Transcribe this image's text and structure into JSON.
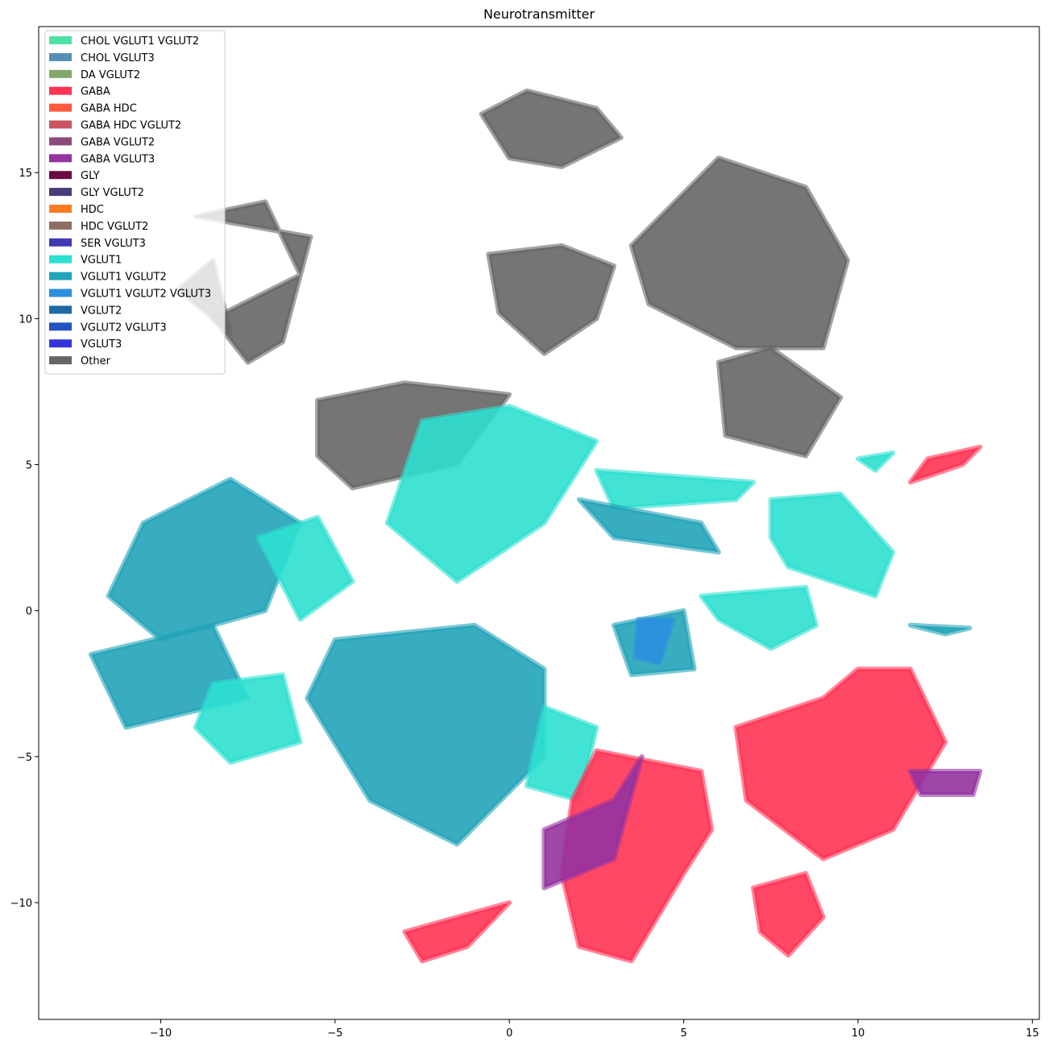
{
  "chart_data": {
    "type": "scatter",
    "title": "Neurotransmitter",
    "xlabel": "",
    "ylabel": "",
    "xlim": [
      -13.5,
      15.2
    ],
    "ylim": [
      -14.0,
      20.0
    ],
    "xticks": [
      -10,
      -5,
      0,
      5,
      10,
      15
    ],
    "xtick_labels": [
      "−10",
      "−5",
      "0",
      "5",
      "10",
      "15"
    ],
    "yticks": [
      -10,
      -5,
      0,
      5,
      10,
      15
    ],
    "ytick_labels": [
      "−10",
      "−5",
      "0",
      "5",
      "10",
      "15"
    ],
    "grid": false,
    "legend_position": "top-left",
    "legend": [
      {
        "name": "CHOL VGLUT1 VGLUT2",
        "color": "#4fe0a6"
      },
      {
        "name": "CHOL VGLUT3",
        "color": "#568fb3"
      },
      {
        "name": "DA VGLUT2",
        "color": "#84a86a"
      },
      {
        "name": "GABA",
        "color": "#ff3355"
      },
      {
        "name": "GABA HDC",
        "color": "#ff5a40"
      },
      {
        "name": "GABA HDC VGLUT2",
        "color": "#c85660"
      },
      {
        "name": "GABA VGLUT2",
        "color": "#8a4a7a"
      },
      {
        "name": "GABA VGLUT3",
        "color": "#9532a0"
      },
      {
        "name": "GLY",
        "color": "#6a0a40"
      },
      {
        "name": "GLY VGLUT2",
        "color": "#4a3a78"
      },
      {
        "name": "HDC",
        "color": "#ff7a20"
      },
      {
        "name": "HDC VGLUT2",
        "color": "#8e6e62"
      },
      {
        "name": "SER VGLUT3",
        "color": "#3f3ab6"
      },
      {
        "name": "VGLUT1",
        "color": "#2de0d0"
      },
      {
        "name": "VGLUT1 VGLUT2",
        "color": "#23a4b9"
      },
      {
        "name": "VGLUT1 VGLUT2 VGLUT3",
        "color": "#2b8fdf"
      },
      {
        "name": "VGLUT2",
        "color": "#1e6aa6"
      },
      {
        "name": "VGLUT2 VGLUT3",
        "color": "#2352c2"
      },
      {
        "name": "VGLUT3",
        "color": "#3236d8"
      },
      {
        "name": "Other",
        "color": "#666666"
      }
    ],
    "clusters": [
      {
        "series": "Other",
        "points": [
          [
            -9,
            13.5
          ],
          [
            -7,
            14
          ],
          [
            -6,
            11.5
          ],
          [
            -8.5,
            10
          ],
          [
            -7.5,
            8.5
          ],
          [
            -6.5,
            9.2
          ],
          [
            -5.7,
            12.8
          ]
        ]
      },
      {
        "series": "Other",
        "points": [
          [
            -0.8,
            17
          ],
          [
            0.5,
            17.8
          ],
          [
            2.5,
            17.2
          ],
          [
            3.2,
            16.2
          ],
          [
            1.5,
            15.2
          ],
          [
            0,
            15.5
          ]
        ]
      },
      {
        "series": "Other",
        "points": [
          [
            -0.6,
            12.2
          ],
          [
            1.5,
            12.5
          ],
          [
            3,
            11.8
          ],
          [
            2.5,
            10
          ],
          [
            1,
            8.8
          ],
          [
            -0.3,
            10.2
          ]
        ]
      },
      {
        "series": "Other",
        "points": [
          [
            3.5,
            12.5
          ],
          [
            6,
            15.5
          ],
          [
            8.5,
            14.5
          ],
          [
            9.7,
            12
          ],
          [
            9,
            9
          ],
          [
            6.5,
            9
          ],
          [
            4,
            10.5
          ]
        ]
      },
      {
        "series": "Other",
        "points": [
          [
            6,
            8.5
          ],
          [
            7.5,
            9
          ],
          [
            9.5,
            7.3
          ],
          [
            8.5,
            5.3
          ],
          [
            6.2,
            6
          ]
        ]
      },
      {
        "series": "Other",
        "points": [
          [
            -5.5,
            7.2
          ],
          [
            -3,
            7.8
          ],
          [
            0,
            7.4
          ],
          [
            -1.5,
            5
          ],
          [
            -4.5,
            4.2
          ],
          [
            -5.5,
            5.3
          ]
        ]
      },
      {
        "series": "VGLUT1",
        "points": [
          [
            -2.5,
            6.5
          ],
          [
            0,
            7
          ],
          [
            2.5,
            5.8
          ],
          [
            1,
            3
          ],
          [
            -1.5,
            1
          ],
          [
            -3.5,
            3
          ]
        ]
      },
      {
        "series": "VGLUT1 VGLUT2",
        "points": [
          [
            -10.5,
            3
          ],
          [
            -8,
            4.5
          ],
          [
            -6,
            3
          ],
          [
            -7,
            0
          ],
          [
            -10,
            -1
          ],
          [
            -11.5,
            0.5
          ]
        ]
      },
      {
        "series": "VGLUT1",
        "points": [
          [
            -7.2,
            2.5
          ],
          [
            -5.5,
            3.2
          ],
          [
            -4.5,
            1
          ],
          [
            -6,
            -0.3
          ]
        ]
      },
      {
        "series": "VGLUT1 VGLUT2",
        "points": [
          [
            -12,
            -1.5
          ],
          [
            -8.5,
            -0.5
          ],
          [
            -7.5,
            -3
          ],
          [
            -11,
            -4
          ]
        ]
      },
      {
        "series": "VGLUT1",
        "points": [
          [
            -8.5,
            -2.5
          ],
          [
            -6.5,
            -2.2
          ],
          [
            -6,
            -4.5
          ],
          [
            -8,
            -5.2
          ],
          [
            -9,
            -4
          ]
        ]
      },
      {
        "series": "VGLUT1 VGLUT2",
        "points": [
          [
            -5,
            -1
          ],
          [
            -1,
            -0.5
          ],
          [
            1,
            -2
          ],
          [
            1,
            -5
          ],
          [
            -1.5,
            -8
          ],
          [
            -4,
            -6.5
          ],
          [
            -5.8,
            -3
          ]
        ]
      },
      {
        "series": "VGLUT1",
        "points": [
          [
            1,
            -3.3
          ],
          [
            2.5,
            -4
          ],
          [
            2,
            -6.5
          ],
          [
            0.5,
            -6
          ]
        ]
      },
      {
        "series": "VGLUT1 VGLUT2",
        "points": [
          [
            3,
            -0.5
          ],
          [
            5,
            0
          ],
          [
            5.3,
            -2
          ],
          [
            3.5,
            -2.2
          ]
        ]
      },
      {
        "series": "VGLUT1 VGLUT2 VGLUT3",
        "points": [
          [
            3.7,
            -0.3
          ],
          [
            4.7,
            -0.3
          ],
          [
            4.3,
            -1.8
          ],
          [
            3.6,
            -1.6
          ]
        ]
      },
      {
        "series": "VGLUT1",
        "points": [
          [
            2.5,
            4.8
          ],
          [
            7,
            4.4
          ],
          [
            6.5,
            3.8
          ],
          [
            3,
            3.5
          ]
        ]
      },
      {
        "series": "VGLUT1 VGLUT2",
        "points": [
          [
            2,
            3.8
          ],
          [
            5.5,
            3
          ],
          [
            6,
            2
          ],
          [
            3,
            2.5
          ]
        ]
      },
      {
        "series": "VGLUT1",
        "points": [
          [
            7.5,
            3.8
          ],
          [
            9.5,
            4
          ],
          [
            11,
            2
          ],
          [
            10.5,
            0.5
          ],
          [
            8,
            1.5
          ],
          [
            7.5,
            2.5
          ]
        ]
      },
      {
        "series": "VGLUT1",
        "points": [
          [
            5.5,
            0.5
          ],
          [
            8.5,
            0.8
          ],
          [
            8.8,
            -0.5
          ],
          [
            7.5,
            -1.3
          ],
          [
            6,
            -0.3
          ]
        ]
      },
      {
        "series": "VGLUT1",
        "points": [
          [
            10,
            5.2
          ],
          [
            11,
            5.4
          ],
          [
            10.5,
            4.8
          ]
        ]
      },
      {
        "series": "GABA",
        "points": [
          [
            12,
            5.2
          ],
          [
            13.5,
            5.6
          ],
          [
            13,
            5
          ],
          [
            11.5,
            4.4
          ]
        ]
      },
      {
        "series": "GABA",
        "points": [
          [
            2.5,
            -4.8
          ],
          [
            5.5,
            -5.5
          ],
          [
            5.8,
            -7.5
          ],
          [
            5,
            -9
          ],
          [
            3.5,
            -12
          ],
          [
            2,
            -11.5
          ],
          [
            1.5,
            -9
          ],
          [
            1.8,
            -6.5
          ]
        ]
      },
      {
        "series": "GABA VGLUT3",
        "points": [
          [
            1,
            -7.5
          ],
          [
            3,
            -6.5
          ],
          [
            3.8,
            -5
          ],
          [
            3,
            -8.5
          ],
          [
            1,
            -9.5
          ]
        ]
      },
      {
        "series": "GABA",
        "points": [
          [
            -3,
            -11
          ],
          [
            -1.5,
            -10.5
          ],
          [
            0,
            -10
          ],
          [
            -1.2,
            -11.5
          ],
          [
            -2.5,
            -12
          ]
        ]
      },
      {
        "series": "GABA",
        "points": [
          [
            6.5,
            -4
          ],
          [
            9,
            -3
          ],
          [
            10,
            -2
          ],
          [
            11.5,
            -2
          ],
          [
            12.5,
            -4.5
          ],
          [
            11,
            -7.5
          ],
          [
            9,
            -8.5
          ],
          [
            6.8,
            -6.5
          ]
        ]
      },
      {
        "series": "GABA VGLUT3",
        "points": [
          [
            11.5,
            -5.5
          ],
          [
            13.5,
            -5.5
          ],
          [
            13.3,
            -6.3
          ],
          [
            11.8,
            -6.3
          ]
        ]
      },
      {
        "series": "GABA",
        "points": [
          [
            7,
            -9.5
          ],
          [
            8.5,
            -9
          ],
          [
            9,
            -10.5
          ],
          [
            8,
            -11.8
          ],
          [
            7.2,
            -11
          ]
        ]
      },
      {
        "series": "VGLUT1 VGLUT2",
        "points": [
          [
            11.5,
            -0.5
          ],
          [
            13.2,
            -0.6
          ],
          [
            12.5,
            -0.8
          ]
        ]
      },
      {
        "series": "Other",
        "points": [
          [
            -8.5,
            12
          ],
          [
            -8,
            9.5
          ],
          [
            -9.5,
            11
          ]
        ]
      }
    ]
  }
}
